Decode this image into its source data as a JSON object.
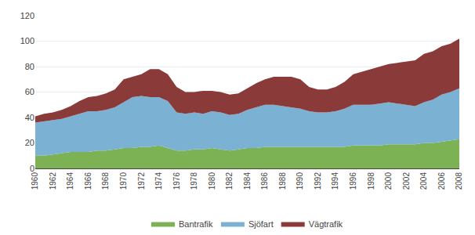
{
  "chart_data": {
    "type": "area",
    "stacked": true,
    "x": [
      1960,
      1961,
      1962,
      1963,
      1964,
      1965,
      1966,
      1967,
      1968,
      1969,
      1970,
      1971,
      1972,
      1973,
      1974,
      1975,
      1976,
      1977,
      1978,
      1979,
      1980,
      1981,
      1982,
      1983,
      1984,
      1985,
      1986,
      1987,
      1988,
      1989,
      1990,
      1991,
      1992,
      1993,
      1994,
      1995,
      1996,
      1997,
      1998,
      1999,
      2000,
      2001,
      2002,
      2003,
      2004,
      2005,
      2006,
      2007,
      2008
    ],
    "series": [
      {
        "name": "Bantrafik",
        "color": "#7db254",
        "values": [
          10,
          10,
          11,
          12,
          13,
          13,
          13,
          14,
          14,
          15,
          16,
          16,
          17,
          17,
          18,
          16,
          14,
          14,
          15,
          15,
          16,
          15,
          14,
          15,
          16,
          16,
          17,
          17,
          17,
          17,
          17,
          17,
          17,
          17,
          17,
          17,
          18,
          18,
          18,
          18,
          19,
          19,
          19,
          19,
          20,
          20,
          21,
          22,
          23
        ]
      },
      {
        "name": "Sjöfart",
        "color": "#7bb2d4",
        "values": [
          26,
          27,
          27,
          27,
          28,
          30,
          32,
          31,
          32,
          33,
          36,
          40,
          40,
          39,
          38,
          37,
          30,
          29,
          29,
          28,
          29,
          29,
          28,
          28,
          30,
          32,
          33,
          33,
          32,
          31,
          30,
          28,
          27,
          27,
          28,
          30,
          32,
          32,
          32,
          33,
          33,
          32,
          31,
          30,
          32,
          34,
          37,
          38,
          40
        ]
      },
      {
        "name": "Vägtrafik",
        "color": "#8b3a3a",
        "values": [
          5,
          6,
          6,
          7,
          8,
          10,
          11,
          12,
          13,
          14,
          18,
          16,
          17,
          22,
          22,
          21,
          20,
          17,
          16,
          18,
          16,
          16,
          16,
          16,
          17,
          19,
          20,
          22,
          23,
          24,
          23,
          19,
          18,
          18,
          19,
          21,
          24,
          26,
          28,
          29,
          30,
          32,
          34,
          36,
          38,
          38,
          38,
          38,
          39
        ]
      }
    ],
    "xlim": [
      1960,
      2008
    ],
    "xticks": [
      1960,
      1962,
      1964,
      1966,
      1968,
      1970,
      1972,
      1974,
      1976,
      1978,
      1980,
      1982,
      1984,
      1986,
      1988,
      1990,
      1992,
      1994,
      1996,
      1998,
      2000,
      2002,
      2004,
      2006,
      2008
    ],
    "ylim": [
      0,
      120
    ],
    "yticks": [
      0,
      20,
      40,
      60,
      80,
      100,
      120
    ],
    "grid": true,
    "legend": "bottom"
  }
}
